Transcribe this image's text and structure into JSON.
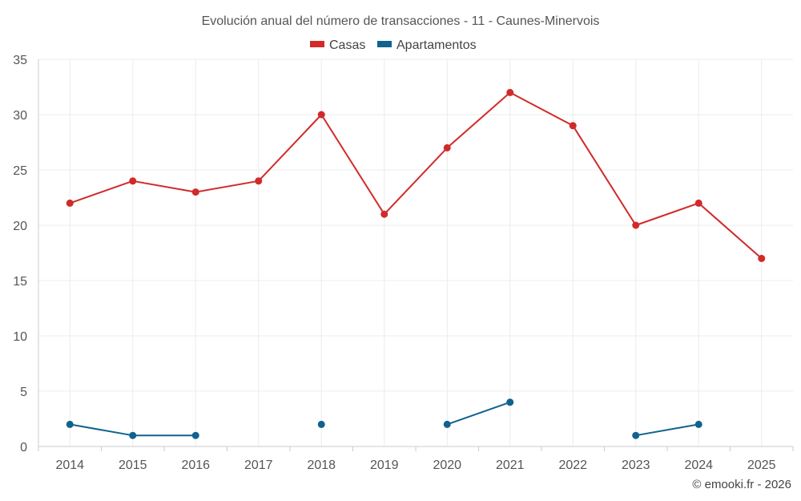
{
  "chart_data": {
    "type": "line",
    "title": "Evolución anual del número de transacciones - 11 - Caunes-Minervois",
    "categories": [
      "2014",
      "2015",
      "2016",
      "2017",
      "2018",
      "2019",
      "2020",
      "2021",
      "2022",
      "2023",
      "2024",
      "2025"
    ],
    "ylim": [
      0,
      35
    ],
    "yticks": [
      0,
      5,
      10,
      15,
      20,
      25,
      30,
      35
    ],
    "grid": true,
    "legend_position": "top-center",
    "series": [
      {
        "name": "Casas",
        "color": "#d12a2a",
        "values": [
          22,
          24,
          23,
          24,
          30,
          21,
          27,
          32,
          29,
          20,
          22,
          17
        ]
      },
      {
        "name": "Apartamentos",
        "color": "#10628f",
        "values": [
          2,
          1,
          1,
          null,
          2,
          null,
          2,
          4,
          null,
          1,
          2,
          null
        ]
      }
    ]
  },
  "credit": "© emooki.fr - 2026"
}
